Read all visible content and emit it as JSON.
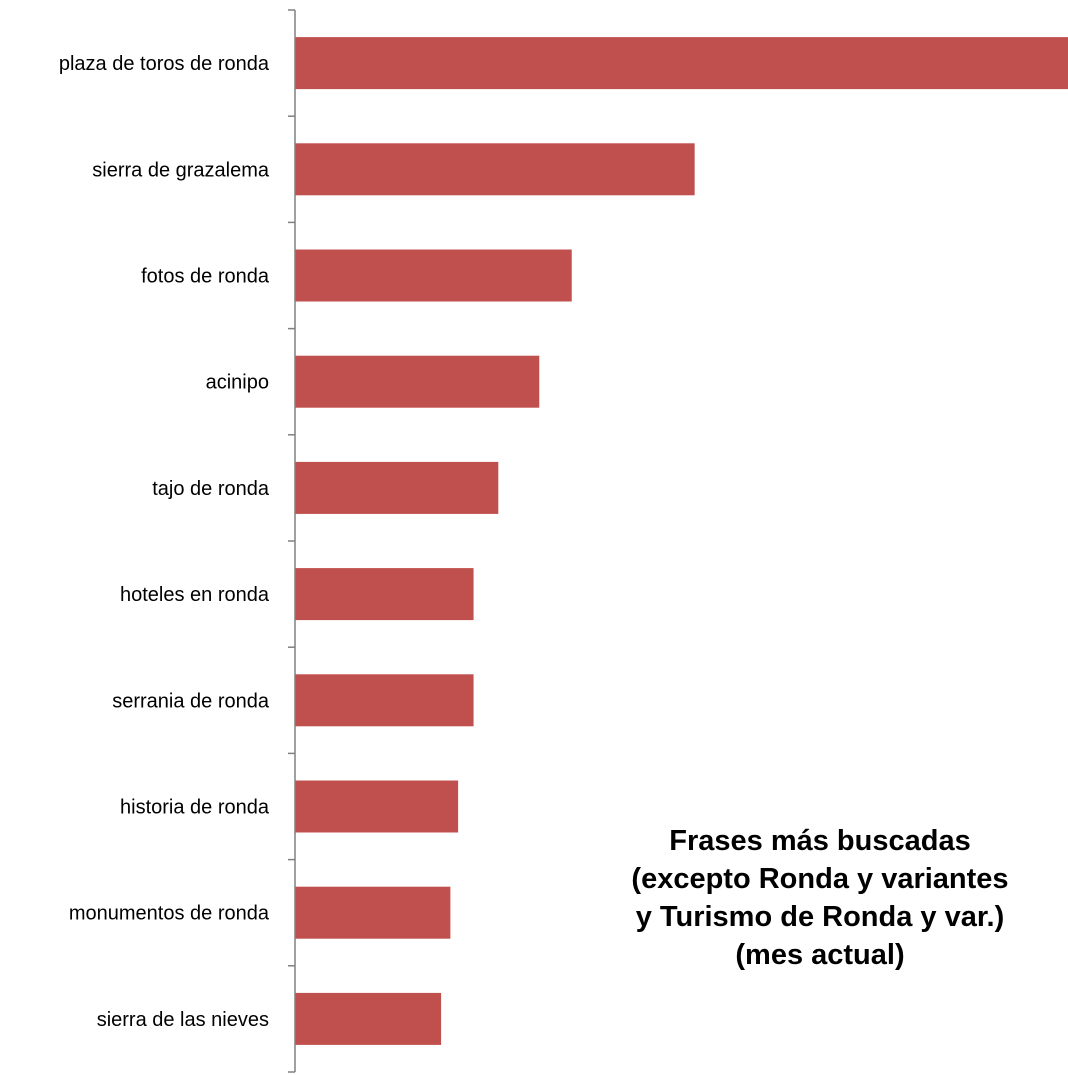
{
  "chart_data": {
    "type": "bar",
    "orientation": "horizontal",
    "categories": [
      "plaza de toros de ronda",
      "sierra de grazalema",
      "fotos de ronda",
      "acinipo",
      "tajo de ronda",
      "hoteles en ronda",
      "serrania de ronda",
      "historia de ronda",
      "monumentos de ronda",
      "sierra de las nieves"
    ],
    "values": [
      100,
      51.7,
      35.8,
      31.6,
      26.3,
      23.1,
      23.1,
      21.1,
      20.1,
      18.9
    ],
    "bar_color": "#C0504D",
    "axis_color": "#808080",
    "xlim": [
      0,
      100
    ],
    "grid": false,
    "legend": "none",
    "title_lines": [
      "Frases más buscadas",
      "(excepto Ronda y variantes",
      "y Turismo de Ronda y var.)",
      "(mes actual)"
    ]
  }
}
